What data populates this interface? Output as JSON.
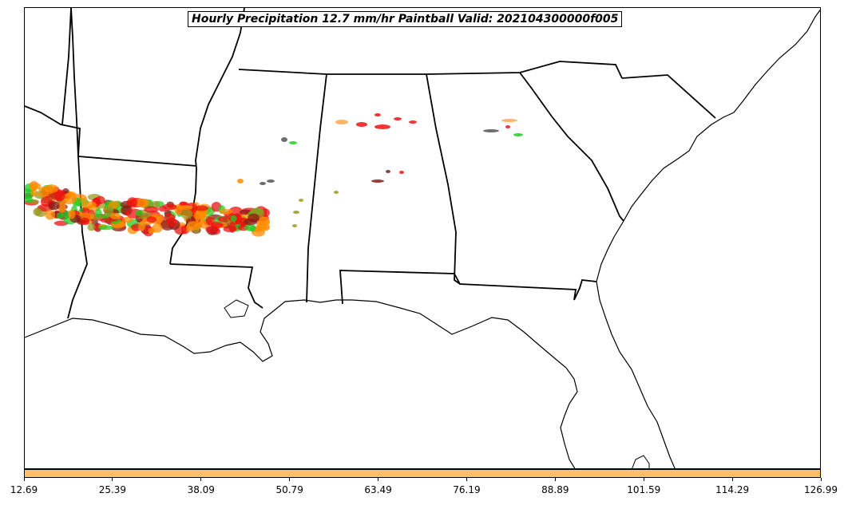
{
  "title": "Hourly Precipitation 12.7 mm/hr Paintball Valid: 202104300000f005",
  "colorbar": {
    "color": "#ffc266",
    "ticks": [
      "12.69",
      "25.39",
      "38.09",
      "50.79",
      "63.49",
      "76.19",
      "88.89",
      "101.59",
      "114.29",
      "126.99"
    ]
  },
  "colors": {
    "red": "#ee1111",
    "orange": "#ff8c00",
    "green": "#22cc22",
    "olive": "#9a9a20",
    "dark_red": "#8b1a1a",
    "gray": "#555555",
    "light_orange": "#ffa64d"
  }
}
